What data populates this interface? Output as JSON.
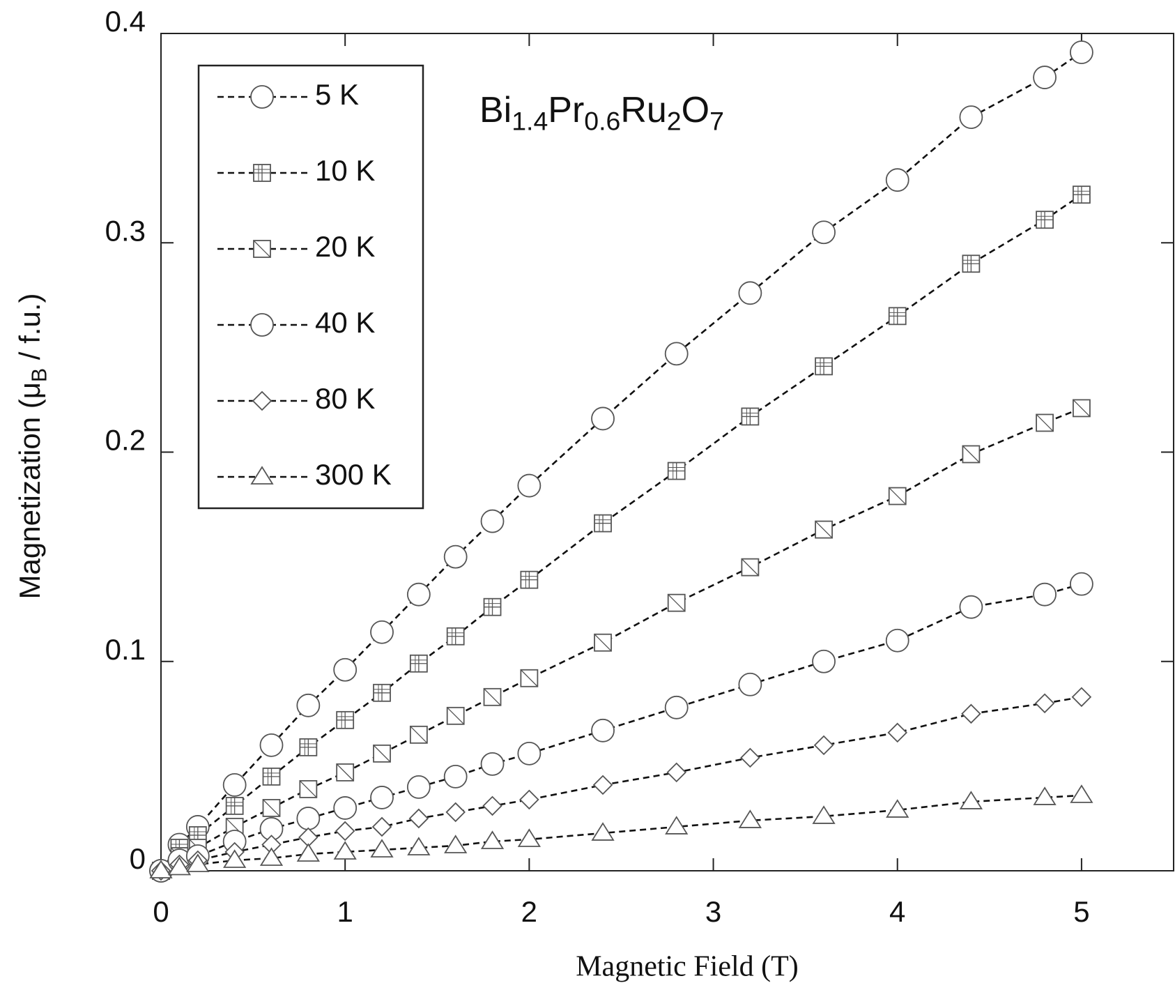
{
  "chart_data": {
    "type": "line",
    "title": "Bi1.4Pr0.6Ru2O7",
    "x_label": "Magnetic Field (T)",
    "y_label": "Magnetization (μB / f.u.)",
    "x": [
      0,
      0.1,
      0.2,
      0.4,
      0.6,
      0.8,
      1.0,
      1.2,
      1.4,
      1.6,
      1.8,
      2.0,
      2.4,
      2.8,
      3.2,
      3.6,
      4.0,
      4.4,
      4.8,
      5.0
    ],
    "series": [
      {
        "name": "5 K",
        "color": "#555555",
        "marker": "circle",
        "values": [
          0,
          0.0125,
          0.021,
          0.041,
          0.06,
          0.079,
          0.096,
          0.114,
          0.132,
          0.15,
          0.167,
          0.184,
          0.216,
          0.247,
          0.276,
          0.305,
          0.33,
          0.36,
          0.379,
          0.391
        ]
      },
      {
        "name": "10 K",
        "color": "#555555",
        "marker": "square-plus",
        "values": [
          0,
          0.011,
          0.017,
          0.031,
          0.045,
          0.059,
          0.072,
          0.085,
          0.099,
          0.112,
          0.126,
          0.139,
          0.166,
          0.191,
          0.217,
          0.241,
          0.265,
          0.29,
          0.311,
          0.323
        ]
      },
      {
        "name": "20 K",
        "color": "#555555",
        "marker": "square-slash",
        "values": [
          0,
          0.007,
          0.011,
          0.021,
          0.03,
          0.039,
          0.047,
          0.056,
          0.065,
          0.074,
          0.083,
          0.092,
          0.109,
          0.128,
          0.145,
          0.163,
          0.179,
          0.199,
          0.214,
          0.221
        ]
      },
      {
        "name": "40 K",
        "color": "#555555",
        "marker": "circle",
        "values": [
          0,
          0.005,
          0.007,
          0.014,
          0.02,
          0.025,
          0.03,
          0.035,
          0.04,
          0.045,
          0.051,
          0.056,
          0.067,
          0.078,
          0.089,
          0.1,
          0.11,
          0.126,
          0.132,
          0.137
        ]
      },
      {
        "name": "80 K",
        "color": "#555555",
        "marker": "diamond",
        "values": [
          0,
          0.003,
          0.005,
          0.009,
          0.0125,
          0.016,
          0.019,
          0.021,
          0.025,
          0.028,
          0.031,
          0.034,
          0.041,
          0.047,
          0.054,
          0.06,
          0.066,
          0.075,
          0.08,
          0.083
        ]
      },
      {
        "name": "300 K",
        "color": "#555555",
        "marker": "triangle",
        "values": [
          0,
          0.0015,
          0.003,
          0.005,
          0.006,
          0.008,
          0.009,
          0.01,
          0.011,
          0.012,
          0.014,
          0.015,
          0.018,
          0.021,
          0.024,
          0.026,
          0.029,
          0.033,
          0.035,
          0.036
        ]
      }
    ],
    "xlim": [
      0,
      5.5
    ],
    "ylim": [
      0,
      0.4
    ],
    "xticks": [
      0,
      1,
      2,
      3,
      4,
      5
    ],
    "yticks": [
      0,
      0.1,
      0.2,
      0.3,
      0.4
    ],
    "line_style": "dashed",
    "line_color": "#111111",
    "legend": "upper left"
  }
}
